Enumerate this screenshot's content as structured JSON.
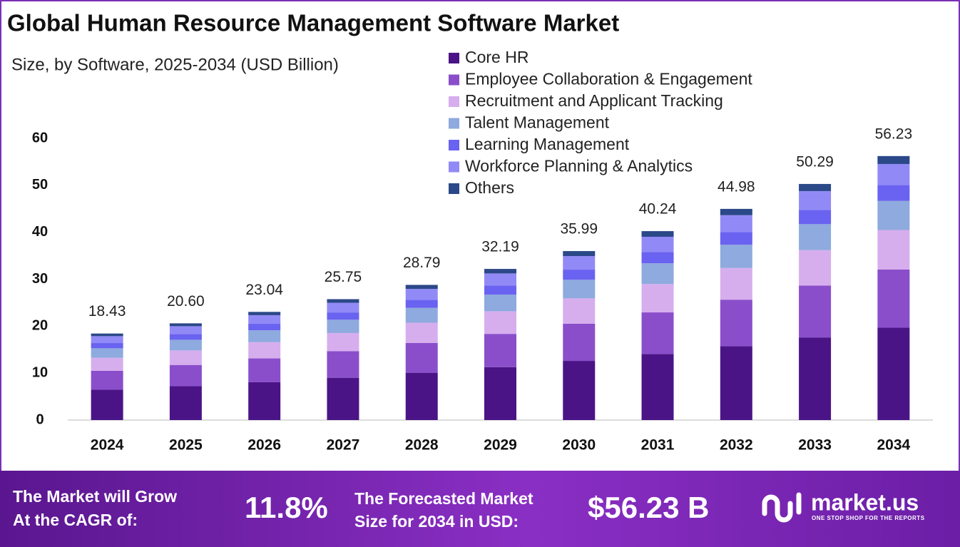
{
  "chart_data": {
    "type": "stacked-bar",
    "title": "Global Human Resource Management Software Market",
    "subtitle": "Size, by Software, 2025-2034 (USD Billion)",
    "categories": [
      "2024",
      "2025",
      "2026",
      "2027",
      "2028",
      "2029",
      "2030",
      "2031",
      "2032",
      "2033",
      "2034"
    ],
    "series": [
      {
        "name": "Core HR",
        "color": "#4a1486",
        "values": [
          6.45,
          7.21,
          8.06,
          9.01,
          10.08,
          11.27,
          12.6,
          14.08,
          15.74,
          17.6,
          19.68
        ]
      },
      {
        "name": "Employee Collaboration & Engagement",
        "color": "#8a4ecb",
        "values": [
          4.05,
          4.53,
          5.07,
          5.67,
          6.33,
          7.08,
          7.92,
          8.85,
          9.9,
          11.06,
          12.37
        ]
      },
      {
        "name": "Recruitment and Applicant Tracking",
        "color": "#d6aeee",
        "values": [
          2.76,
          3.09,
          3.46,
          3.86,
          4.32,
          4.83,
          5.4,
          6.04,
          6.75,
          7.54,
          8.43
        ]
      },
      {
        "name": "Talent Management",
        "color": "#8eaade",
        "values": [
          2.03,
          2.27,
          2.53,
          2.83,
          3.17,
          3.54,
          3.96,
          4.43,
          4.95,
          5.53,
          6.19
        ]
      },
      {
        "name": "Learning Management",
        "color": "#6a62f0",
        "values": [
          1.11,
          1.24,
          1.38,
          1.55,
          1.73,
          1.93,
          2.16,
          2.41,
          2.7,
          3.02,
          3.37
        ]
      },
      {
        "name": "Workforce Planning & Analytics",
        "color": "#918af6",
        "values": [
          1.47,
          1.65,
          1.84,
          2.06,
          2.3,
          2.58,
          2.88,
          3.22,
          3.6,
          4.02,
          4.5
        ]
      },
      {
        "name": "Others",
        "color": "#2b4888",
        "values": [
          0.56,
          0.61,
          0.7,
          0.77,
          0.86,
          0.96,
          1.07,
          1.21,
          1.34,
          1.52,
          1.69
        ]
      }
    ],
    "totals": [
      18.43,
      20.6,
      23.04,
      25.75,
      28.79,
      32.19,
      35.99,
      40.24,
      44.98,
      50.29,
      56.23
    ],
    "total_labels": [
      "18.43",
      "20.60",
      "23.04",
      "25.75",
      "28.79",
      "32.19",
      "35.99",
      "40.24",
      "44.98",
      "50.29",
      "56.23"
    ],
    "ylim": [
      0,
      60
    ],
    "yticks": [
      0,
      10,
      20,
      30,
      40,
      50,
      60
    ],
    "grid": false
  },
  "footer": {
    "cagr_text": [
      "The Market will Grow",
      "At the CAGR of:"
    ],
    "cagr_value": "11.8%",
    "forecast_text": [
      "The Forecasted Market",
      "Size for 2034 in USD:"
    ],
    "forecast_value": "$56.23 B",
    "brand": "market.us",
    "tagline": "ONE STOP SHOP FOR THE REPORTS"
  }
}
